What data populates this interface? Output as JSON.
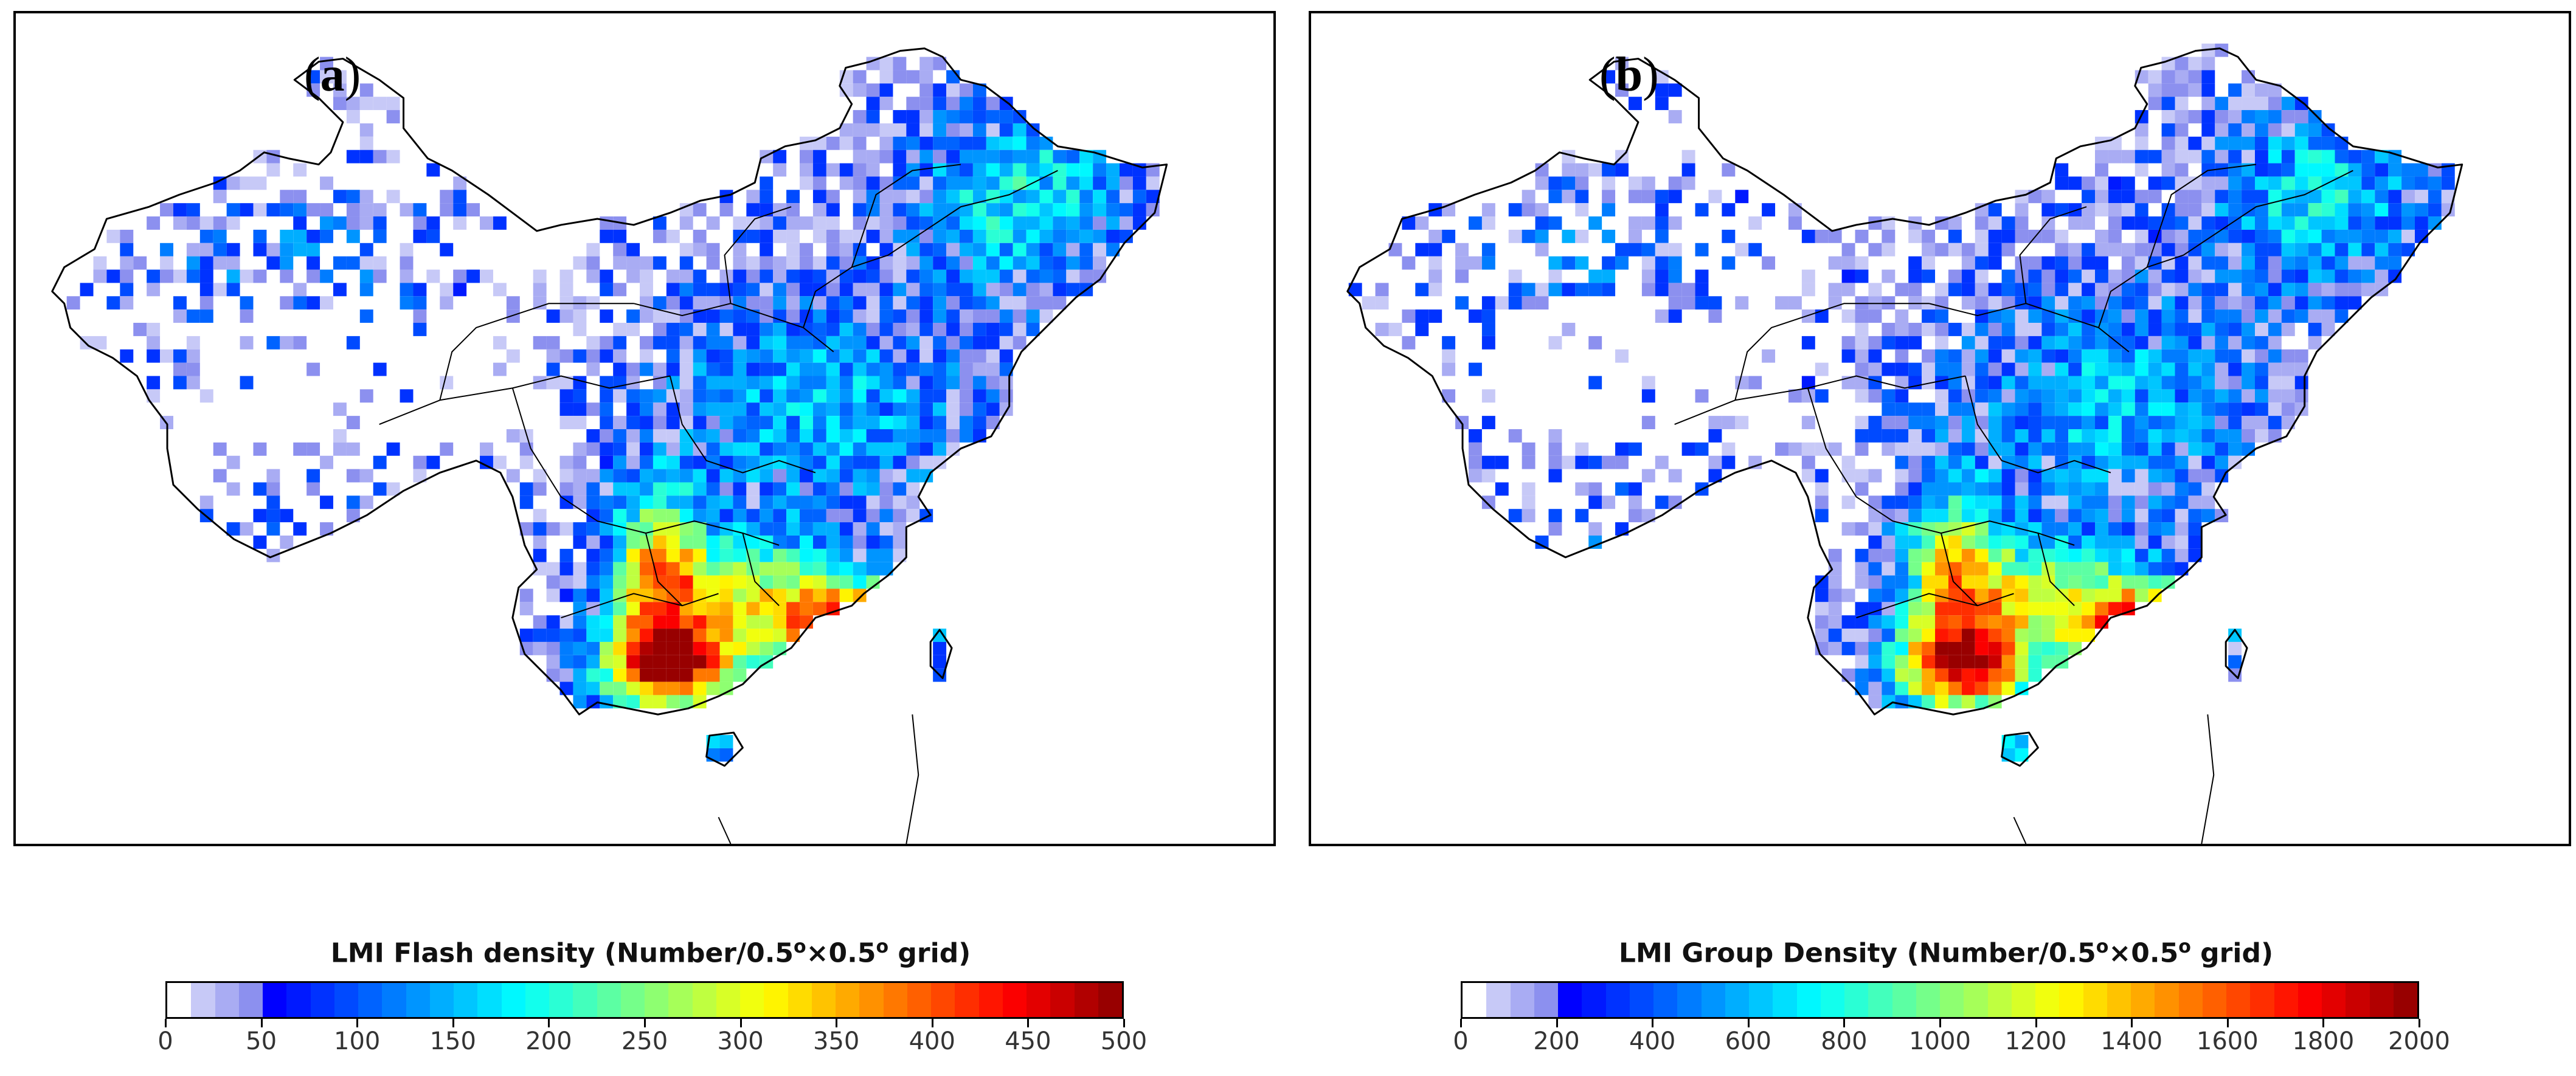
{
  "panels": [
    {
      "id": "a",
      "label": "a",
      "title": "LMI Flash density",
      "unit_prefix": "(Number/0.5",
      "unit_mid": "×0.5",
      "unit_suffix": " grid)",
      "degree_symbol": "o",
      "ticks": [
        "0",
        "50",
        "100",
        "150",
        "200",
        "250",
        "300",
        "350",
        "400",
        "450",
        "500"
      ],
      "vmin": 0,
      "vmax": 500
    },
    {
      "id": "b",
      "label": "b",
      "title": "LMI Group Density",
      "unit_prefix": "(Number/0.5",
      "unit_mid": "×0.5",
      "unit_suffix": " grid)",
      "degree_symbol": "o",
      "ticks": [
        "0",
        "200",
        "400",
        "600",
        "800",
        "1000",
        "1200",
        "1400",
        "1600",
        "1800",
        "2000"
      ],
      "vmin": 0,
      "vmax": 2000
    }
  ],
  "colormap": {
    "name": "jet",
    "first_bin": "#ffffff",
    "steps": 40
  },
  "region": "China"
}
